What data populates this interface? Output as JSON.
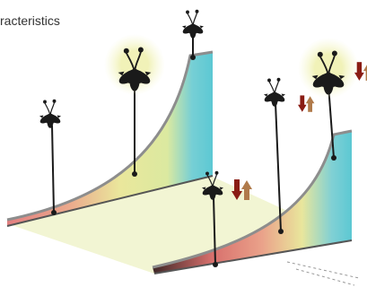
{
  "header": {
    "title": "racteristics"
  }
}
